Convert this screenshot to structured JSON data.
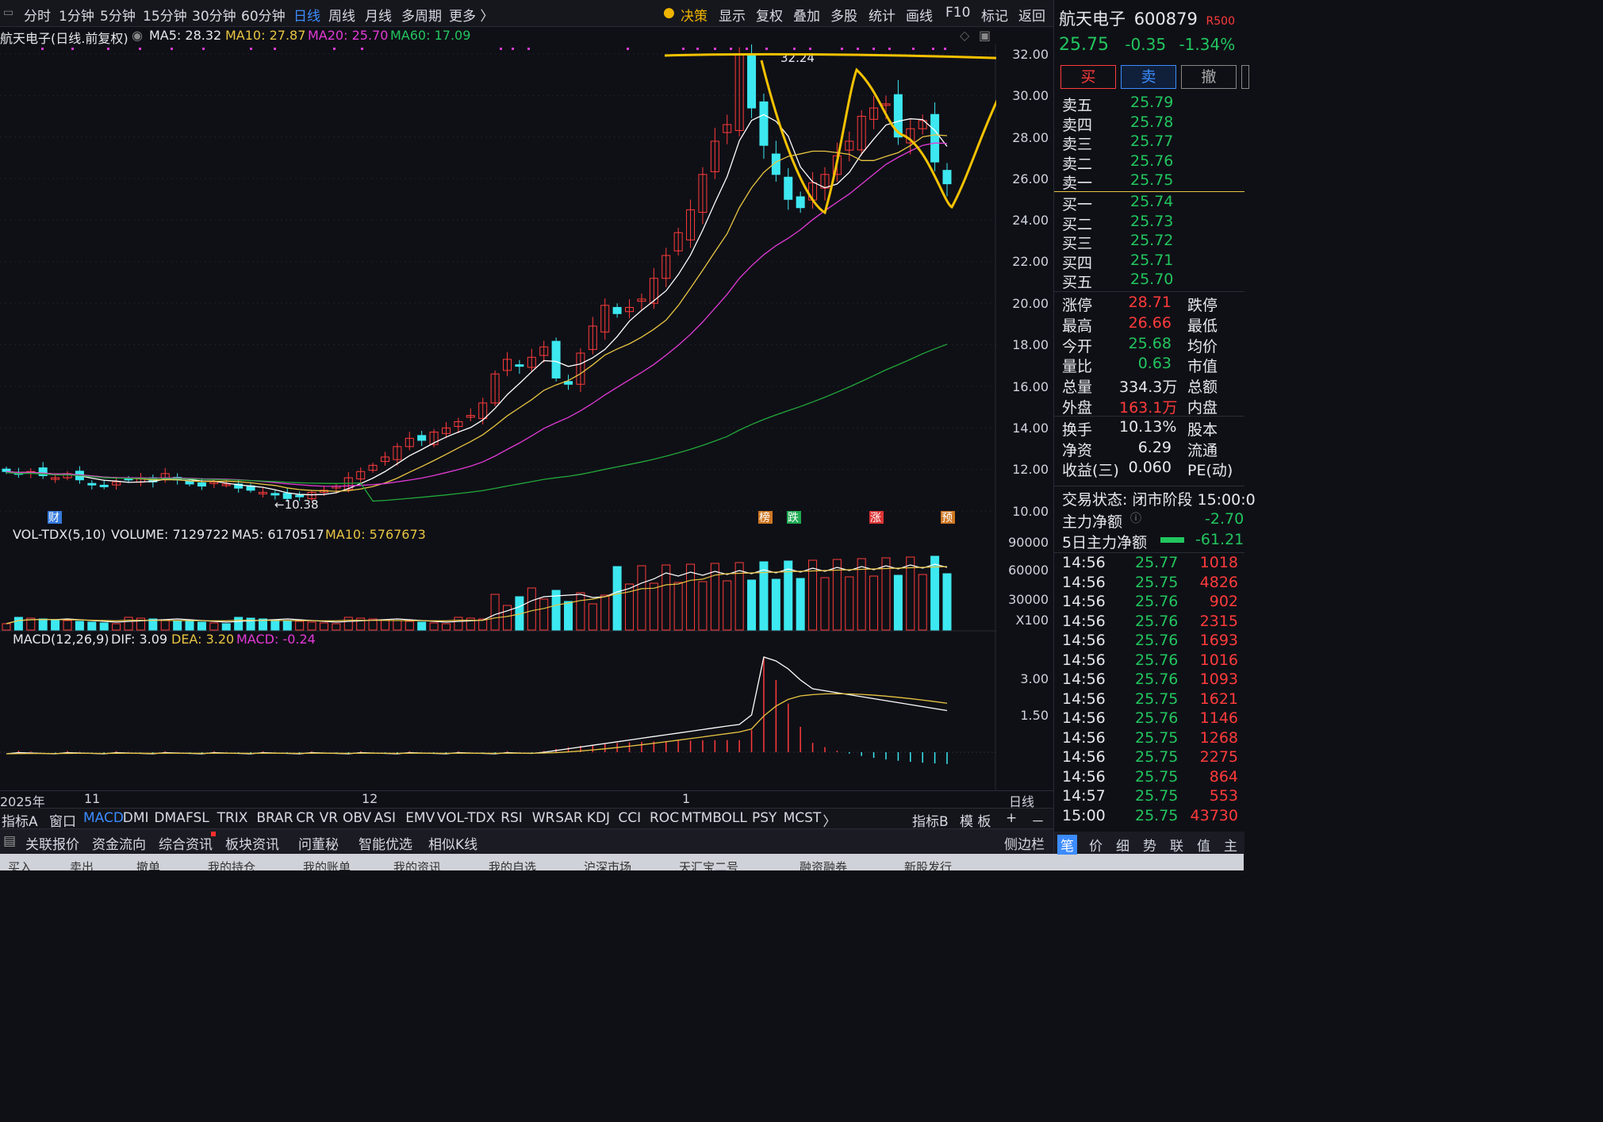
{
  "topbar": {
    "periods": [
      "分时",
      "1分钟",
      "5分钟",
      "15分钟",
      "30分钟",
      "60分钟",
      "日线",
      "周线",
      "月线",
      "多周期",
      "更多 〉"
    ],
    "active_period": "日线",
    "tools": [
      "决策",
      "显示",
      "复权",
      "叠加",
      "多股",
      "统计",
      "画线",
      "F10",
      "标记",
      "返回"
    ]
  },
  "legend": {
    "title": "航天电子(日线.前复权)",
    "ma5": "MA5: 28.32",
    "ma10": "MA10: 27.87",
    "ma20": "MA20: 25.70",
    "ma60": "MA60: 17.09"
  },
  "price_axis": [
    "32.00",
    "30.00",
    "28.00",
    "26.00",
    "24.00",
    "22.00",
    "20.00",
    "18.00",
    "16.00",
    "14.00",
    "12.00",
    "10.00"
  ],
  "annotations": {
    "high": "32.24",
    "low": "10.38"
  },
  "markers": [
    {
      "label": "财",
      "color": "#3c8cff"
    },
    {
      "label": "榜",
      "color": "#f08a24"
    },
    {
      "label": "跌",
      "color": "#22c55e"
    },
    {
      "label": "涨",
      "color": "#ff3b3b"
    },
    {
      "label": "预",
      "color": "#f08a24"
    }
  ],
  "volume": {
    "title": "VOL-TDX(5,10)",
    "volume": "VOLUME: 7129722",
    "ma5": "MA5: 6170517",
    "ma10": "MA10: 5767673",
    "axis": [
      "90000",
      "60000",
      "30000",
      "X100"
    ]
  },
  "macd": {
    "title": "MACD(12,26,9)",
    "dif": "DIF: 3.09",
    "dea": "DEA: 3.20",
    "macd": "MACD: -0.24",
    "axis": [
      "3.00",
      "1.50"
    ]
  },
  "xaxis": {
    "labels": [
      "2025年",
      "11",
      "12",
      "1"
    ],
    "right": "日线"
  },
  "indicators": {
    "left": "指标A",
    "items": [
      "窗口",
      "MACD",
      "DMI",
      "DMA",
      "FSL",
      "TRIX",
      "BRAR",
      "CR",
      "VR",
      "OBV",
      "ASI",
      "EMV",
      "VOL-TDX",
      "RSI",
      "WR",
      "SAR",
      "KDJ",
      "CCI",
      "ROC",
      "MTM",
      "BOLL",
      "PSY",
      "MCST"
    ],
    "active": "MACD",
    "more": "〉",
    "right": [
      "指标B",
      "模 板",
      "+",
      "－"
    ]
  },
  "infobar": {
    "items": [
      "关联报价",
      "资金流向",
      "综合资讯",
      "板块资讯",
      "问董秘",
      "智能优选",
      "相似K线"
    ],
    "right": "侧边栏"
  },
  "bottombar": {
    "items": [
      "买入",
      "卖出",
      "撤单",
      "我的持仓",
      "我的账单",
      "我的资讯",
      "我的自选",
      "沪深市场",
      "天汇宝二号",
      "融资融券",
      "新股发行"
    ]
  },
  "quote": {
    "name": "航天电子",
    "code": "600879",
    "badge": "R500",
    "price": "25.75",
    "change": "-0.35",
    "pct": "-1.34%",
    "buttons": [
      "买",
      "卖",
      "撤"
    ],
    "asks": [
      {
        "label": "卖五",
        "price": "25.79"
      },
      {
        "label": "卖四",
        "price": "25.78"
      },
      {
        "label": "卖三",
        "price": "25.77"
      },
      {
        "label": "卖二",
        "price": "25.76"
      },
      {
        "label": "卖一",
        "price": "25.75"
      }
    ],
    "bids": [
      {
        "label": "买一",
        "price": "25.74"
      },
      {
        "label": "买二",
        "price": "25.73"
      },
      {
        "label": "买三",
        "price": "25.72"
      },
      {
        "label": "买四",
        "price": "25.71"
      },
      {
        "label": "买五",
        "price": "25.70"
      }
    ],
    "stats": [
      {
        "k": "涨停",
        "v": "28.71",
        "vc": "r",
        "k2": "跌停"
      },
      {
        "k": "最高",
        "v": "26.66",
        "vc": "r",
        "k2": "最低"
      },
      {
        "k": "今开",
        "v": "25.68",
        "vc": "g",
        "k2": "均价"
      },
      {
        "k": "量比",
        "v": "0.63",
        "vc": "g",
        "k2": "市值"
      },
      {
        "k": "总量",
        "v": "334.3万",
        "vc": "w",
        "k2": "总额"
      },
      {
        "k": "外盘",
        "v": "163.1万",
        "vc": "r",
        "k2": "内盘"
      },
      {
        "k": "换手",
        "v": "10.13%",
        "vc": "w",
        "k2": "股本"
      },
      {
        "k": "净资",
        "v": "6.29",
        "vc": "w",
        "k2": "流通"
      },
      {
        "k": "收益(三)",
        "v": "0.060",
        "vc": "w",
        "k2": "PE(动)"
      }
    ],
    "status": "交易状态: 闭市阶段 15:00:0",
    "main_net": {
      "label": "主力净额",
      "value": "-2.70"
    },
    "main_net5": {
      "label": "5日主力净额",
      "value": "-61.21"
    },
    "ticks": [
      {
        "t": "14:56",
        "p": "25.77",
        "v": "1018",
        "c": "r"
      },
      {
        "t": "14:56",
        "p": "25.75",
        "v": "4826",
        "c": "r"
      },
      {
        "t": "14:56",
        "p": "25.76",
        "v": "902",
        "c": "r"
      },
      {
        "t": "14:56",
        "p": "25.76",
        "v": "2315",
        "c": "r"
      },
      {
        "t": "14:56",
        "p": "25.76",
        "v": "1693",
        "c": "r"
      },
      {
        "t": "14:56",
        "p": "25.76",
        "v": "1016",
        "c": "r"
      },
      {
        "t": "14:56",
        "p": "25.76",
        "v": "1093",
        "c": "r"
      },
      {
        "t": "14:56",
        "p": "25.75",
        "v": "1621",
        "c": "r"
      },
      {
        "t": "14:56",
        "p": "25.76",
        "v": "1146",
        "c": "r"
      },
      {
        "t": "14:56",
        "p": "25.75",
        "v": "1268",
        "c": "r"
      },
      {
        "t": "14:56",
        "p": "25.75",
        "v": "2275",
        "c": "r"
      },
      {
        "t": "14:56",
        "p": "25.75",
        "v": "864",
        "c": "r"
      },
      {
        "t": "14:57",
        "p": "25.75",
        "v": "553",
        "c": "r"
      },
      {
        "t": "15:00",
        "p": "25.75",
        "v": "43730",
        "c": "r"
      }
    ],
    "tabs": [
      "笔",
      "价",
      "细",
      "势",
      "联",
      "值",
      "主"
    ]
  },
  "colors": {
    "up": "#ff3b3b",
    "down": "#3de8f0",
    "ma5": "#ffffff",
    "ma10": "#e8c542",
    "ma20": "#e23ad6",
    "ma60": "#22a83a",
    "drawing": "#f5c200"
  },
  "chart_data": {
    "type": "candlestick",
    "series_values_approx_close": [
      11.9,
      11.8,
      11.9,
      11.7,
      11.6,
      11.8,
      11.5,
      11.3,
      11.2,
      11.4,
      11.5,
      11.6,
      11.4,
      11.8,
      11.5,
      11.3,
      11.2,
      11.4,
      11.3,
      11.1,
      11.0,
      10.9,
      10.8,
      10.6,
      10.7,
      10.9,
      11.0,
      11.2,
      11.6,
      11.9,
      12.2,
      12.6,
      13.1,
      13.5,
      13.4,
      13.8,
      14.0,
      14.3,
      14.6,
      15.2,
      16.6,
      17.3,
      17.0,
      17.4,
      17.9,
      16.4,
      16.1,
      17.6,
      18.9,
      19.9,
      19.5,
      19.8,
      20.2,
      21.2,
      22.3,
      23.4,
      24.5,
      26.2,
      27.8,
      28.6,
      32.0,
      29.4,
      27.6,
      26.2,
      25.0,
      24.6,
      25.8,
      26.2,
      27.1,
      27.8,
      29.0,
      29.4,
      29.6,
      28.0,
      28.4,
      28.8,
      26.8,
      25.75
    ],
    "ylim": [
      10.0,
      32.24
    ]
  }
}
